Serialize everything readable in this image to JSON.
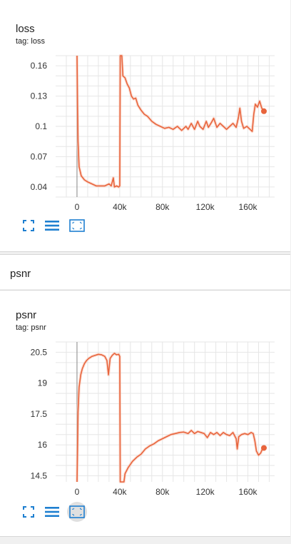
{
  "section": {
    "title": "psnr"
  },
  "colors": {
    "line": "#e8643c",
    "smooth_shadow": "#f8c8b8",
    "grid": "#e6e6e6",
    "axis": "#888888",
    "icon": "#1e7fd0"
  },
  "toolbar_icons": [
    "fullscreen-icon",
    "lines-icon",
    "fit-domain-icon"
  ],
  "chart_data": [
    {
      "type": "line",
      "title": "loss",
      "tag": "tag: loss",
      "xlim": [
        -20000,
        185000
      ],
      "ylim": [
        0.03,
        0.17
      ],
      "x_ticks": [
        0,
        40000,
        80000,
        120000,
        160000
      ],
      "x_tick_labels": [
        "0",
        "40k",
        "80k",
        "120k",
        "160k"
      ],
      "y_ticks": [
        0.04,
        0.07,
        0.1,
        0.13,
        0.16
      ],
      "y_tick_labels": [
        "0.04",
        "0.07",
        "0.1",
        "0.13",
        "0.16"
      ],
      "grid": true,
      "series": [
        {
          "points": [
            [
              0,
              0.17
            ],
            [
              500,
              0.12
            ],
            [
              1000,
              0.085
            ],
            [
              2000,
              0.06
            ],
            [
              4000,
              0.051
            ],
            [
              7000,
              0.047
            ],
            [
              10000,
              0.045
            ],
            [
              14000,
              0.043
            ],
            [
              18000,
              0.041
            ],
            [
              22000,
              0.041
            ],
            [
              26000,
              0.041
            ],
            [
              28000,
              0.042
            ],
            [
              30000,
              0.043
            ],
            [
              32000,
              0.041
            ],
            [
              33000,
              0.045
            ],
            [
              34000,
              0.049
            ],
            [
              35000,
              0.04
            ],
            [
              37000,
              0.041
            ],
            [
              39000,
              0.04
            ],
            [
              40000,
              0.041
            ],
            [
              40500,
              0.17
            ],
            [
              42000,
              0.17
            ],
            [
              43000,
              0.15
            ],
            [
              45000,
              0.148
            ],
            [
              47000,
              0.142
            ],
            [
              49000,
              0.138
            ],
            [
              51000,
              0.13
            ],
            [
              53000,
              0.127
            ],
            [
              55000,
              0.128
            ],
            [
              57000,
              0.121
            ],
            [
              60000,
              0.116
            ],
            [
              63000,
              0.112
            ],
            [
              66000,
              0.11
            ],
            [
              70000,
              0.105
            ],
            [
              74000,
              0.102
            ],
            [
              78000,
              0.1
            ],
            [
              82000,
              0.098
            ],
            [
              86000,
              0.099
            ],
            [
              90000,
              0.097
            ],
            [
              94000,
              0.1
            ],
            [
              98000,
              0.096
            ],
            [
              102000,
              0.1
            ],
            [
              104000,
              0.097
            ],
            [
              107000,
              0.103
            ],
            [
              110000,
              0.097
            ],
            [
              113000,
              0.105
            ],
            [
              115000,
              0.1
            ],
            [
              118000,
              0.097
            ],
            [
              121000,
              0.105
            ],
            [
              123000,
              0.099
            ],
            [
              126000,
              0.104
            ],
            [
              128000,
              0.108
            ],
            [
              131000,
              0.099
            ],
            [
              134000,
              0.103
            ],
            [
              137000,
              0.1
            ],
            [
              140000,
              0.097
            ],
            [
              143000,
              0.1
            ],
            [
              146000,
              0.103
            ],
            [
              149000,
              0.099
            ],
            [
              151000,
              0.108
            ],
            [
              152500,
              0.118
            ],
            [
              154000,
              0.105
            ],
            [
              156000,
              0.098
            ],
            [
              159000,
              0.1
            ],
            [
              162000,
              0.097
            ],
            [
              164000,
              0.095
            ],
            [
              165500,
              0.112
            ],
            [
              167000,
              0.122
            ],
            [
              169000,
              0.119
            ],
            [
              171000,
              0.125
            ],
            [
              173000,
              0.118
            ],
            [
              175000,
              0.115
            ]
          ]
        }
      ]
    },
    {
      "type": "line",
      "title": "psnr",
      "tag": "tag: psnr",
      "xlim": [
        -20000,
        185000
      ],
      "ylim": [
        14.2,
        21
      ],
      "x_ticks": [
        0,
        40000,
        80000,
        120000,
        160000
      ],
      "x_tick_labels": [
        "0",
        "40k",
        "80k",
        "120k",
        "160k"
      ],
      "y_ticks": [
        14.5,
        16,
        17.5,
        19,
        20.5
      ],
      "y_tick_labels": [
        "14.5",
        "16",
        "17.5",
        "19",
        "20.5"
      ],
      "grid": true,
      "series": [
        {
          "points": [
            [
              0,
              14.2
            ],
            [
              500,
              15.8
            ],
            [
              1000,
              17.6
            ],
            [
              2000,
              18.8
            ],
            [
              3500,
              19.4
            ],
            [
              5000,
              19.7
            ],
            [
              7000,
              19.95
            ],
            [
              9000,
              20.1
            ],
            [
              11000,
              20.2
            ],
            [
              14000,
              20.3
            ],
            [
              17000,
              20.35
            ],
            [
              20000,
              20.4
            ],
            [
              23000,
              20.38
            ],
            [
              26000,
              20.3
            ],
            [
              28000,
              20.1
            ],
            [
              29500,
              19.4
            ],
            [
              31000,
              20.2
            ],
            [
              33000,
              20.35
            ],
            [
              35000,
              20.45
            ],
            [
              37000,
              20.38
            ],
            [
              39000,
              20.4
            ],
            [
              40000,
              20.3
            ],
            [
              40500,
              14.2
            ],
            [
              44000,
              14.2
            ],
            [
              45000,
              14.6
            ],
            [
              48000,
              14.9
            ],
            [
              52000,
              15.2
            ],
            [
              56000,
              15.4
            ],
            [
              60000,
              15.55
            ],
            [
              64000,
              15.8
            ],
            [
              68000,
              15.95
            ],
            [
              72000,
              16.05
            ],
            [
              76000,
              16.2
            ],
            [
              80000,
              16.3
            ],
            [
              84000,
              16.4
            ],
            [
              88000,
              16.5
            ],
            [
              92000,
              16.55
            ],
            [
              96000,
              16.6
            ],
            [
              100000,
              16.62
            ],
            [
              104000,
              16.55
            ],
            [
              107000,
              16.7
            ],
            [
              110000,
              16.55
            ],
            [
              113000,
              16.65
            ],
            [
              116000,
              16.6
            ],
            [
              119000,
              16.55
            ],
            [
              122000,
              16.35
            ],
            [
              125000,
              16.6
            ],
            [
              128000,
              16.5
            ],
            [
              131000,
              16.6
            ],
            [
              134000,
              16.45
            ],
            [
              137000,
              16.6
            ],
            [
              140000,
              16.5
            ],
            [
              143000,
              16.45
            ],
            [
              146000,
              16.6
            ],
            [
              149000,
              16.3
            ],
            [
              150000,
              15.8
            ],
            [
              151500,
              16.4
            ],
            [
              154000,
              16.5
            ],
            [
              157000,
              16.55
            ],
            [
              160000,
              16.5
            ],
            [
              163000,
              16.6
            ],
            [
              165000,
              16.55
            ],
            [
              166500,
              16.2
            ],
            [
              168000,
              15.7
            ],
            [
              170000,
              15.5
            ],
            [
              172000,
              15.6
            ],
            [
              174000,
              15.85
            ],
            [
              175000,
              15.85
            ]
          ]
        }
      ]
    }
  ]
}
